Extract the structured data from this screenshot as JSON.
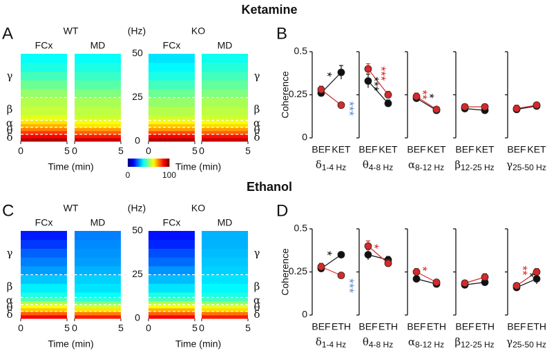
{
  "chart_data": [
    {
      "type": "heatmap",
      "title": "Ketamine",
      "letter": "A",
      "ylabel": "(Hz)",
      "ylim": [
        0,
        50
      ],
      "yticks": [
        0,
        25,
        50
      ],
      "xlabel": "Time (min)",
      "xlim": [
        0,
        5
      ],
      "xticks": [
        0,
        5
      ],
      "bins": [
        0,
        2,
        4,
        6,
        8,
        10,
        12,
        15,
        20,
        25,
        30,
        35,
        40,
        45,
        50
      ],
      "band_edges": [
        4,
        8,
        12,
        25
      ],
      "bands": [
        {
          "label": "γ",
          "value": 37
        },
        {
          "label": "β",
          "value": 18
        },
        {
          "label": "α",
          "value": 10
        },
        {
          "label": "θ",
          "value": 6
        },
        {
          "label": "δ",
          "value": 2
        }
      ],
      "colormap": "jet",
      "colorbar": {
        "lim": [
          0,
          100
        ],
        "ticks": [
          0,
          100
        ]
      },
      "groups": [
        {
          "name": "WT",
          "regions": [
            {
              "name": "FCx",
              "values": [
                95,
                88,
                82,
                75,
                70,
                65,
                60,
                57,
                55,
                52,
                48,
                44,
                40,
                38
              ]
            },
            {
              "name": "MD",
              "values": [
                93,
                85,
                78,
                72,
                65,
                62,
                58,
                56,
                54,
                50,
                46,
                43,
                40,
                38
              ]
            }
          ]
        },
        {
          "name": "KO",
          "regions": [
            {
              "name": "FCx",
              "values": [
                95,
                88,
                80,
                72,
                68,
                63,
                58,
                55,
                52,
                48,
                44,
                40,
                37,
                35
              ]
            },
            {
              "name": "MD",
              "values": [
                93,
                86,
                78,
                72,
                66,
                62,
                58,
                56,
                54,
                50,
                47,
                44,
                41,
                39
              ]
            }
          ]
        }
      ]
    },
    {
      "type": "coherence",
      "letter": "B",
      "ylabel": "Coherence",
      "ylim": [
        0,
        0.5
      ],
      "yticks": [
        0,
        0.25,
        0.5
      ],
      "panels": [
        {
          "categories": [
            "BEF",
            "KET"
          ],
          "band": "δ",
          "range": "1-4 Hz",
          "series": [
            {
              "color": "#111111",
              "values": [
                0.26,
                0.38
              ],
              "errors": [
                0.02,
                0.04
              ]
            },
            {
              "color": "#d42a2a",
              "values": [
                0.28,
                0.19
              ],
              "errors": [
                0.02,
                0.01
              ]
            }
          ],
          "annotations": [
            {
              "text": "*",
              "color": "#111111"
            },
            {
              "text": "***",
              "color": "#5b8fd0"
            }
          ]
        },
        {
          "categories": [
            "BEF",
            "KET"
          ],
          "band": "θ",
          "range": "4-8 Hz",
          "series": [
            {
              "color": "#111111",
              "values": [
                0.33,
                0.2
              ],
              "errors": [
                0.04,
                0.02
              ]
            },
            {
              "color": "#d42a2a",
              "values": [
                0.4,
                0.25
              ],
              "errors": [
                0.03,
                0.02
              ]
            }
          ],
          "annotations": [
            {
              "text": "***",
              "color": "#111111"
            },
            {
              "text": "***",
              "color": "#d42a2a"
            }
          ]
        },
        {
          "categories": [
            "BEF",
            "KET"
          ],
          "band": "α",
          "range": "8-12 Hz",
          "series": [
            {
              "color": "#111111",
              "values": [
                0.23,
                0.16
              ],
              "errors": [
                0.02,
                0.01
              ]
            },
            {
              "color": "#d42a2a",
              "values": [
                0.24,
                0.165
              ],
              "errors": [
                0.02,
                0.01
              ]
            }
          ],
          "annotations": [
            {
              "text": "**",
              "color": "#d42a2a"
            },
            {
              "text": "*",
              "color": "#111111"
            }
          ]
        },
        {
          "categories": [
            "BEF",
            "KET"
          ],
          "band": "β",
          "range": "12-25 Hz",
          "series": [
            {
              "color": "#111111",
              "values": [
                0.17,
                0.16
              ],
              "errors": [
                0.01,
                0.01
              ]
            },
            {
              "color": "#d42a2a",
              "values": [
                0.18,
                0.18
              ],
              "errors": [
                0.01,
                0.01
              ]
            }
          ],
          "annotations": []
        },
        {
          "categories": [
            "BEF",
            "KET"
          ],
          "band": "γ",
          "range": "25-50 Hz",
          "series": [
            {
              "color": "#111111",
              "values": [
                0.165,
                0.185
              ],
              "errors": [
                0.02,
                0.01
              ]
            },
            {
              "color": "#d42a2a",
              "values": [
                0.17,
                0.19
              ],
              "errors": [
                0.02,
                0.01
              ]
            }
          ],
          "annotations": []
        }
      ]
    },
    {
      "type": "heatmap",
      "title": "Ethanol",
      "letter": "C",
      "ylabel": "(Hz)",
      "ylim": [
        0,
        50
      ],
      "yticks": [
        0,
        25,
        50
      ],
      "xlabel": "Time (min)",
      "xlim": [
        0,
        5
      ],
      "xticks": [
        0,
        5
      ],
      "bins": [
        0,
        2,
        4,
        6,
        8,
        10,
        12,
        15,
        20,
        25,
        30,
        35,
        40,
        45,
        50
      ],
      "band_edges": [
        4,
        8,
        12,
        25
      ],
      "bands": [
        {
          "label": "γ",
          "value": 37
        },
        {
          "label": "β",
          "value": 18
        },
        {
          "label": "α",
          "value": 10
        },
        {
          "label": "θ",
          "value": 6
        },
        {
          "label": "δ",
          "value": 2
        }
      ],
      "colormap": "jet",
      "groups": [
        {
          "name": "WT",
          "regions": [
            {
              "name": "FCx",
              "values": [
                88,
                78,
                68,
                62,
                55,
                45,
                40,
                36,
                32,
                28,
                25,
                22,
                18,
                15
              ]
            },
            {
              "name": "MD",
              "values": [
                85,
                75,
                65,
                58,
                50,
                42,
                38,
                35,
                33,
                30,
                28,
                27,
                26,
                25
              ]
            }
          ]
        },
        {
          "name": "KO",
          "regions": [
            {
              "name": "FCx",
              "values": [
                88,
                78,
                70,
                62,
                55,
                45,
                40,
                35,
                31,
                27,
                23,
                20,
                16,
                14
              ]
            },
            {
              "name": "MD",
              "values": [
                85,
                76,
                66,
                60,
                52,
                44,
                40,
                37,
                35,
                33,
                32,
                31,
                30,
                30
              ]
            }
          ]
        }
      ]
    },
    {
      "type": "coherence",
      "letter": "D",
      "ylabel": "Coherence",
      "ylim": [
        0,
        0.5
      ],
      "yticks": [
        0,
        0.25,
        0.5
      ],
      "panels": [
        {
          "categories": [
            "BEF",
            "ETH"
          ],
          "band": "δ",
          "range": "1-4 Hz",
          "series": [
            {
              "color": "#111111",
              "values": [
                0.27,
                0.35
              ],
              "errors": [
                0.02,
                0.01
              ]
            },
            {
              "color": "#d42a2a",
              "values": [
                0.28,
                0.23
              ],
              "errors": [
                0.02,
                0.01
              ]
            }
          ],
          "annotations": [
            {
              "text": "*",
              "color": "#111111"
            },
            {
              "text": "***",
              "color": "#5b8fd0"
            }
          ]
        },
        {
          "categories": [
            "BEF",
            "ETH"
          ],
          "band": "θ",
          "range": "4-8 Hz",
          "series": [
            {
              "color": "#111111",
              "values": [
                0.35,
                0.32
              ],
              "errors": [
                0.03,
                0.02
              ]
            },
            {
              "color": "#d42a2a",
              "values": [
                0.4,
                0.3
              ],
              "errors": [
                0.03,
                0.02
              ]
            }
          ],
          "annotations": [
            {
              "text": "*",
              "color": "#d42a2a"
            }
          ]
        },
        {
          "categories": [
            "BEF",
            "ETH"
          ],
          "band": "α",
          "range": "8-12 Hz",
          "series": [
            {
              "color": "#111111",
              "values": [
                0.21,
                0.18
              ],
              "errors": [
                0.01,
                0.01
              ]
            },
            {
              "color": "#d42a2a",
              "values": [
                0.25,
                0.19
              ],
              "errors": [
                0.02,
                0.01
              ]
            }
          ],
          "annotations": [
            {
              "text": "*",
              "color": "#d42a2a"
            }
          ]
        },
        {
          "categories": [
            "BEF",
            "ETH"
          ],
          "band": "β",
          "range": "12-25 Hz",
          "series": [
            {
              "color": "#111111",
              "values": [
                0.175,
                0.19
              ],
              "errors": [
                0.01,
                0.01
              ]
            },
            {
              "color": "#d42a2a",
              "values": [
                0.185,
                0.22
              ],
              "errors": [
                0.01,
                0.02
              ]
            }
          ],
          "annotations": []
        },
        {
          "categories": [
            "BEF",
            "ETH"
          ],
          "band": "γ",
          "range": "25-50 Hz",
          "series": [
            {
              "color": "#111111",
              "values": [
                0.16,
                0.21
              ],
              "errors": [
                0.01,
                0.03
              ]
            },
            {
              "color": "#d42a2a",
              "values": [
                0.17,
                0.25
              ],
              "errors": [
                0.01,
                0.02
              ]
            }
          ],
          "annotations": [
            {
              "text": "**",
              "color": "#d42a2a"
            },
            {
              "text": "*",
              "color": "#111111"
            }
          ]
        }
      ]
    }
  ]
}
